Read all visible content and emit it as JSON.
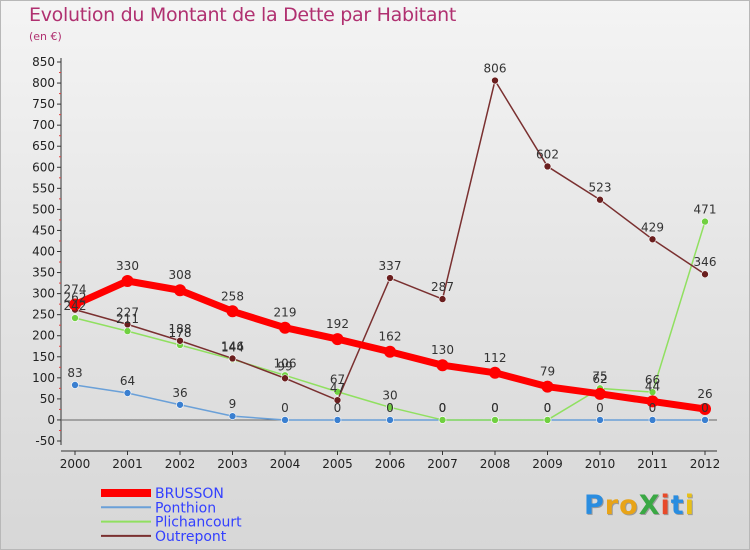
{
  "title": "Evolution du Montant de la Dette par Habitant",
  "subtitle": "(en €)",
  "logo": {
    "text": "ProXiti",
    "colors": [
      "#2a8de0",
      "#e8a418",
      "#e8a418",
      "#3aa844",
      "#e84a2a",
      "#2a8de0",
      "#e8c018"
    ]
  },
  "chart_data": {
    "type": "line",
    "x": [
      "2000",
      "2001",
      "2002",
      "2003",
      "2004",
      "2005",
      "2006",
      "2007",
      "2008",
      "2009",
      "2010",
      "2011",
      "2012"
    ],
    "ylim": [
      -50,
      850
    ],
    "yticks": [
      -50,
      0,
      50,
      100,
      150,
      200,
      250,
      300,
      350,
      400,
      450,
      500,
      550,
      600,
      650,
      700,
      750,
      800,
      850
    ],
    "grid": false,
    "legend": "bottom-left",
    "series": [
      {
        "name": "BRUSSON",
        "color": "#ff0000",
        "point_color": "#ff0000",
        "width": 7,
        "radius": 6,
        "values": [
          274,
          330,
          308,
          258,
          219,
          192,
          162,
          130,
          112,
          79,
          62,
          44,
          26
        ],
        "labels": [
          "274",
          "330",
          "308",
          "258",
          "219",
          "192",
          "162",
          "130",
          "112",
          "79",
          "62",
          "44",
          "26"
        ]
      },
      {
        "name": "Ponthion",
        "color": "#6aa0d8",
        "point_color": "#3a7fd0",
        "width": 1.5,
        "radius": 3.5,
        "values": [
          83,
          64,
          36,
          9,
          0,
          0,
          0,
          0,
          0,
          0,
          0,
          0,
          0
        ],
        "labels": [
          "83",
          "64",
          "36",
          "9",
          "0",
          "0",
          "0",
          "0",
          "0",
          "0",
          "0",
          "0",
          "0"
        ]
      },
      {
        "name": "Plichancourt",
        "color": "#90e060",
        "point_color": "#70d040",
        "width": 1.5,
        "radius": 3.5,
        "values": [
          242,
          211,
          178,
          144,
          106,
          67,
          30,
          0,
          0,
          0,
          75,
          66,
          471
        ],
        "labels": [
          "242",
          "211",
          "178",
          "144",
          "106",
          "67",
          "30",
          "0",
          "0",
          "0",
          "75",
          "66",
          "471"
        ]
      },
      {
        "name": "Outrepont",
        "color": "#7a3030",
        "point_color": "#6a1e1e",
        "width": 1.5,
        "radius": 3.5,
        "values": [
          262,
          227,
          188,
          146,
          99,
          47,
          337,
          287,
          806,
          602,
          523,
          429,
          346
        ],
        "labels": [
          "262",
          "227",
          "188",
          "146",
          "99",
          "47",
          "337",
          "287",
          "806",
          "602",
          "523",
          "429",
          "346"
        ]
      }
    ]
  }
}
